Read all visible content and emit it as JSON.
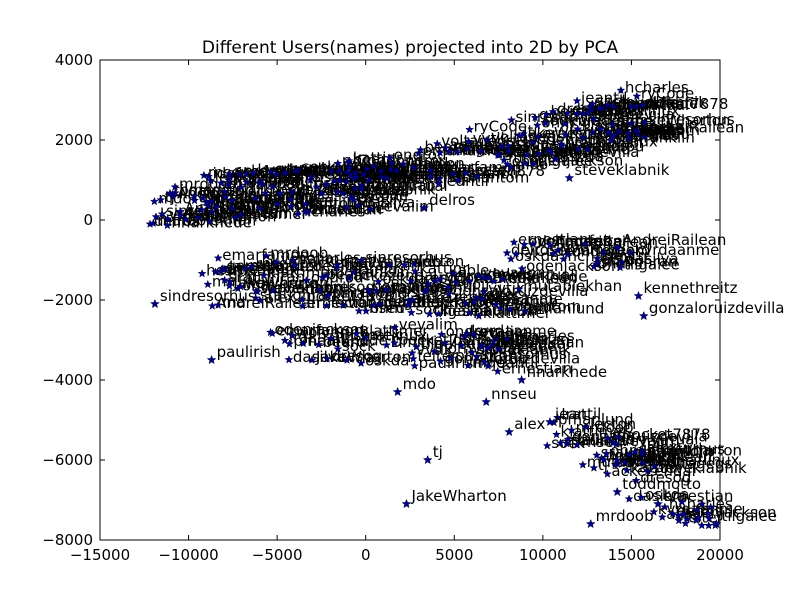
{
  "chart_data": {
    "type": "scatter",
    "title": "Different Users(names) projected into 2D by PCA",
    "xlabel": "",
    "ylabel": "",
    "xlim": [
      -15000,
      20000
    ],
    "ylim": [
      -8000,
      4000
    ],
    "x_ticks": [
      -15000,
      -10000,
      -5000,
      0,
      5000,
      10000,
      15000,
      20000
    ],
    "y_ticks": [
      -8000,
      -6000,
      -4000,
      -2000,
      0,
      2000,
      4000
    ],
    "x_tick_labels": [
      "−15000",
      "−10000",
      "−5000",
      "0",
      "5000",
      "10000",
      "15000",
      "20000"
    ],
    "y_tick_labels": [
      "−8000",
      "−6000",
      "−4000",
      "−2000",
      "0",
      "2000",
      "4000"
    ],
    "marker": "star",
    "marker_color": "#00008b",
    "grid": false,
    "legend": "none",
    "labeled_points": [
      {
        "x": -11900,
        "y": -2100,
        "label": "sindresorhus"
      },
      {
        "x": -8700,
        "y": -3500,
        "label": "paulirish"
      },
      {
        "x": 2300,
        "y": -7100,
        "label": "JakeWharton"
      },
      {
        "x": 12700,
        "y": -7600,
        "label": "mrdoob"
      },
      {
        "x": 3500,
        "y": -6000,
        "label": "tj"
      },
      {
        "x": 1800,
        "y": -4300,
        "label": "mdo"
      },
      {
        "x": 11500,
        "y": 1050,
        "label": "steveklabnik"
      },
      {
        "x": 14200,
        "y": -700,
        "label": "AndreiRailean"
      },
      {
        "x": 15700,
        "y": -2400,
        "label": "gonzaloruizdevilla"
      },
      {
        "x": 6900,
        "y": -3200,
        "label": "sraughran"
      },
      {
        "x": 8800,
        "y": -4000,
        "label": "nnarkhede"
      },
      {
        "x": 6800,
        "y": -4550,
        "label": "nnseu"
      },
      {
        "x": 10400,
        "y": -5050,
        "label": "jeantil"
      },
      {
        "x": 8100,
        "y": -5300,
        "label": "alex"
      },
      {
        "x": 3300,
        "y": 300,
        "label": "delros"
      },
      {
        "x": 19800,
        "y": -7600,
        "label": "tilgalee"
      },
      {
        "x": 14200,
        "y": -6800,
        "label": "toddmotto"
      },
      {
        "x": 16500,
        "y": -7100,
        "label": "ernestian"
      },
      {
        "x": 15400,
        "y": -1900,
        "label": "kennethreitz"
      }
    ],
    "visible_label_fragments": [
      "sinresorhus",
      "dresog",
      "ma",
      "paulirish",
      "ackezendal",
      "wolverine",
      "sock",
      "vevalim",
      "evalim",
      "lrat",
      "pocket7878",
      "hesmatlinux",
      "mdo",
      "JakeWharton",
      "tj",
      "mrdoob",
      "steveklabnik",
      "alex",
      "jeantil",
      "mutablekhan",
      "nnarkhede",
      "phantom",
      "pmanlund",
      "rnseu",
      "kattinr",
      "klattimer",
      "idofranklin",
      "gonzaloruizdevilla",
      "Anoir",
      "AndreiRailean",
      "voltagegs",
      "sraughran",
      "ohm",
      "able",
      "delros",
      "kvrdaanme",
      "oskda",
      "dasilva",
      "felter",
      "odenjackson",
      "hcharles",
      "ryCode",
      "vvtik",
      "Dmitri",
      "tilgalee",
      "ondrou",
      "emarfamon",
      "ernestian",
      "beard",
      "hornvirtual",
      "lecton"
    ]
  }
}
